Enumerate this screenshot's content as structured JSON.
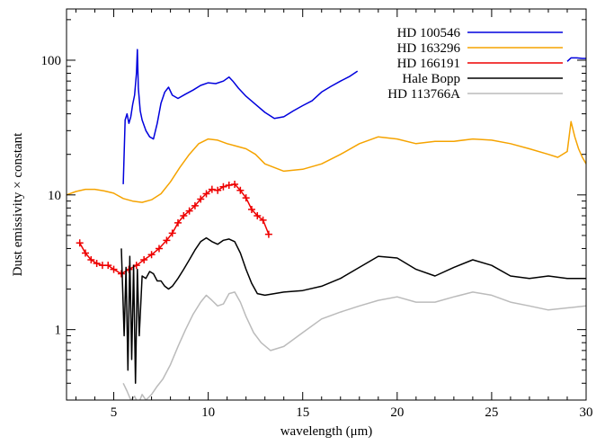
{
  "chart_data": {
    "type": "line",
    "xlabel": "wavelength (μm)",
    "ylabel": "Dust emissivity × constant",
    "xlim": [
      2.5,
      30
    ],
    "ylim": [
      0.3,
      240
    ],
    "yscale": "log",
    "x_ticks": [
      5,
      10,
      15,
      20,
      25,
      30
    ],
    "y_ticks": [
      1,
      10,
      100
    ],
    "legend_position": "top-right",
    "series": [
      {
        "name": "HD 100546",
        "color": "#0000dd",
        "style": "line",
        "x": [
          5.5,
          5.6,
          5.7,
          5.8,
          5.9,
          6.0,
          6.1,
          6.2,
          6.25,
          6.3,
          6.4,
          6.5,
          6.7,
          6.9,
          7.1,
          7.3,
          7.5,
          7.7,
          7.9,
          8.1,
          8.4,
          8.8,
          9.2,
          9.6,
          10.0,
          10.4,
          10.8,
          11.1,
          11.3,
          11.6,
          12.0,
          12.5,
          13.0,
          13.5,
          14.0,
          14.5,
          15.0,
          15.5,
          16.0,
          16.5,
          17.0,
          17.5,
          17.9
        ],
        "y": [
          12,
          36,
          40,
          34,
          38,
          47,
          55,
          80,
          120,
          62,
          42,
          36,
          30,
          27,
          26,
          34,
          48,
          58,
          63,
          55,
          52,
          56,
          60,
          65,
          68,
          67,
          70,
          75,
          70,
          62,
          54,
          47,
          41,
          37,
          38,
          42,
          46,
          50,
          58,
          64,
          70,
          76,
          83
        ]
      },
      {
        "name": "HD 100546",
        "color": "#0000dd",
        "style": "line",
        "x": [
          29.0,
          29.2,
          29.5,
          29.8,
          30.0
        ],
        "y": [
          98,
          104,
          104,
          103,
          103
        ]
      },
      {
        "name": "HD 163296",
        "color": "#f5a300",
        "style": "line",
        "x": [
          2.5,
          3.0,
          3.5,
          4.0,
          4.5,
          5.0,
          5.5,
          6.0,
          6.5,
          7.0,
          7.5,
          8.0,
          8.5,
          9.0,
          9.5,
          10.0,
          10.5,
          11.0,
          11.5,
          12.0,
          12.5,
          13.0,
          14.0,
          15.0,
          16.0,
          17.0,
          18.0,
          19.0,
          20.0,
          21.0,
          22.0,
          23.0,
          24.0,
          25.0,
          26.0,
          27.0,
          28.0,
          28.5,
          29.0,
          29.2,
          29.4,
          29.6,
          29.8,
          30.0
        ],
        "y": [
          10,
          10.6,
          11,
          11,
          10.7,
          10.3,
          9.4,
          9.0,
          8.8,
          9.2,
          10.2,
          12.5,
          16,
          20,
          24,
          26,
          25.5,
          24,
          23,
          22,
          20,
          17,
          15,
          15.5,
          17,
          20,
          24,
          27,
          26,
          24,
          25,
          25,
          26,
          25.5,
          24,
          22,
          20,
          19,
          21,
          35,
          27,
          22,
          19,
          17
        ]
      },
      {
        "name": "HD 166191",
        "color": "#ee0000",
        "style": "markers",
        "x": [
          3.2,
          3.5,
          3.8,
          4.1,
          4.4,
          4.7,
          5.0,
          5.4,
          5.8,
          6.2,
          6.6,
          7.0,
          7.4,
          7.8,
          8.1,
          8.4,
          8.7,
          9.0,
          9.3,
          9.6,
          9.9,
          10.2,
          10.5,
          10.8,
          11.1,
          11.4,
          11.7,
          12.0,
          12.3,
          12.6,
          12.9,
          13.2
        ],
        "y": [
          4.4,
          3.7,
          3.3,
          3.1,
          3.0,
          3.0,
          2.8,
          2.6,
          2.8,
          3.0,
          3.3,
          3.6,
          4.0,
          4.6,
          5.2,
          6.2,
          7.0,
          7.6,
          8.3,
          9.3,
          10.2,
          11.0,
          10.8,
          11.5,
          11.8,
          12.0,
          10.8,
          9.5,
          7.8,
          7.0,
          6.5,
          5.1
        ]
      },
      {
        "name": "Hale Bopp",
        "color": "#000000",
        "style": "line",
        "x": [
          5.4,
          5.55,
          5.65,
          5.75,
          5.85,
          5.95,
          6.05,
          6.15,
          6.25,
          6.35,
          6.5,
          6.7,
          6.9,
          7.1,
          7.3,
          7.5,
          7.7,
          7.9,
          8.1,
          8.4,
          8.7,
          9.0,
          9.3,
          9.6,
          9.9,
          10.2,
          10.5,
          10.8,
          11.1,
          11.4,
          11.7,
          12.0,
          12.3,
          12.6,
          13.0,
          14.0,
          15.0,
          16.0,
          17.0,
          18.0,
          19.0,
          20.0,
          21.0,
          22.0,
          23.0,
          24.0,
          25.0,
          26.0,
          27.0,
          28.0,
          29.0,
          30.0
        ],
        "y": [
          4.0,
          0.9,
          2.9,
          0.5,
          3.5,
          0.6,
          3.0,
          0.4,
          2.8,
          0.9,
          2.5,
          2.4,
          2.7,
          2.6,
          2.3,
          2.3,
          2.1,
          2.0,
          2.1,
          2.4,
          2.8,
          3.3,
          3.9,
          4.5,
          4.8,
          4.5,
          4.3,
          4.6,
          4.7,
          4.5,
          3.7,
          2.8,
          2.2,
          1.85,
          1.8,
          1.9,
          1.95,
          2.1,
          2.4,
          2.9,
          3.5,
          3.4,
          2.8,
          2.5,
          2.9,
          3.3,
          3.0,
          2.5,
          2.4,
          2.5,
          2.4,
          2.4
        ]
      },
      {
        "name": "HD 113766A",
        "color": "#bbbbbb",
        "style": "line",
        "x": [
          5.5,
          5.7,
          5.9,
          6.1,
          6.3,
          6.5,
          6.7,
          7.0,
          7.3,
          7.6,
          8.0,
          8.4,
          8.8,
          9.2,
          9.6,
          9.9,
          10.2,
          10.5,
          10.8,
          11.1,
          11.4,
          11.7,
          12.0,
          12.4,
          12.8,
          13.3,
          14.0,
          15.0,
          16.0,
          17.0,
          18.0,
          19.0,
          20.0,
          21.0,
          22.0,
          23.0,
          24.0,
          25.0,
          26.0,
          27.0,
          28.0,
          29.0,
          30.0
        ],
        "y": [
          0.4,
          0.35,
          0.3,
          0.32,
          0.28,
          0.33,
          0.3,
          0.33,
          0.38,
          0.43,
          0.55,
          0.75,
          1.0,
          1.3,
          1.6,
          1.8,
          1.65,
          1.5,
          1.55,
          1.85,
          1.9,
          1.6,
          1.25,
          0.95,
          0.8,
          0.7,
          0.75,
          0.95,
          1.2,
          1.35,
          1.5,
          1.65,
          1.75,
          1.6,
          1.6,
          1.75,
          1.9,
          1.8,
          1.6,
          1.5,
          1.4,
          1.45,
          1.5
        ]
      }
    ],
    "legend": [
      {
        "label": "HD 100546",
        "color": "#0000dd"
      },
      {
        "label": "HD 163296",
        "color": "#f5a300"
      },
      {
        "label": "HD 166191",
        "color": "#ee0000"
      },
      {
        "label": "Hale Bopp",
        "color": "#000000"
      },
      {
        "label": "HD 113766A",
        "color": "#bbbbbb"
      }
    ]
  }
}
